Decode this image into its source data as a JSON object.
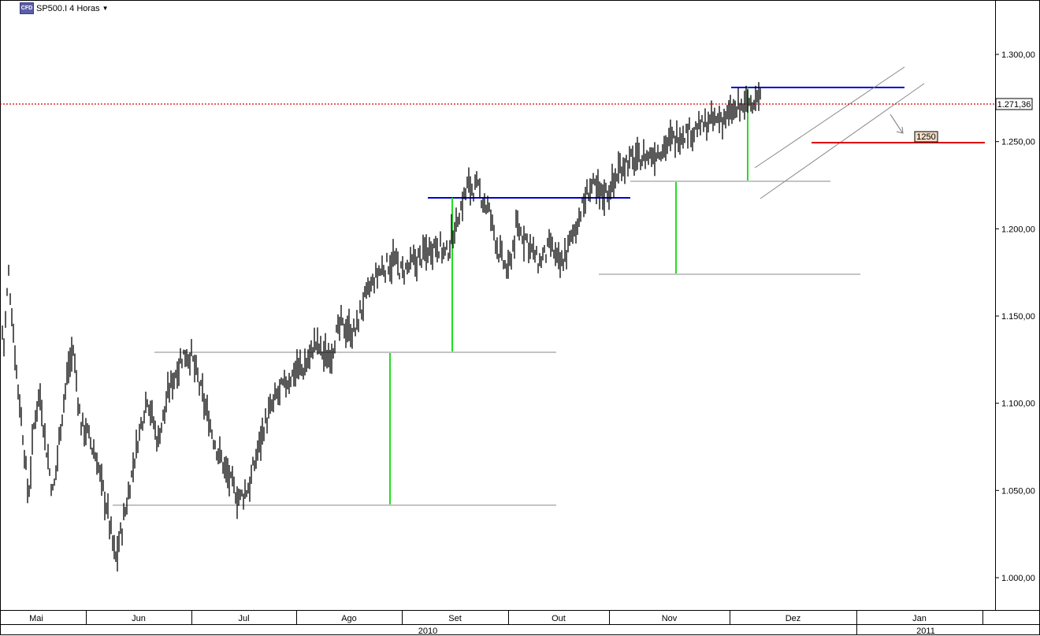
{
  "header": {
    "icon_label": "CFD",
    "symbol": "SP500.I",
    "timeframe": "4 Horas",
    "dropdown_icon": "caret-down-icon"
  },
  "chart_data": {
    "type": "candlestick",
    "title": "SP500.I 4 Horas",
    "yaxis": {
      "ticks": [
        "1.000,00",
        "1.050,00",
        "1.100,00",
        "1.150,00",
        "1.200,00",
        "1.250,00",
        "1.300,00"
      ],
      "tick_values": [
        1000,
        1050,
        1100,
        1150,
        1200,
        1250,
        1300
      ],
      "range": [
        985,
        1331
      ]
    },
    "current_price": {
      "value": 1271.36,
      "label": "1.271,36"
    },
    "target_label": {
      "value": 1250,
      "label": "1250"
    },
    "xaxis": {
      "months": [
        "Mai",
        "Jun",
        "Jul",
        "Ago",
        "Set",
        "Out",
        "Nov",
        "Dez",
        "Jan"
      ],
      "years": [
        "2010",
        "2011"
      ]
    },
    "price_path": [
      [
        0,
        1165
      ],
      [
        0.04,
        1130
      ],
      [
        0.1,
        1175
      ],
      [
        0.18,
        1125
      ],
      [
        0.28,
        1075
      ],
      [
        0.33,
        1045
      ],
      [
        0.4,
        1090
      ],
      [
        0.46,
        1107
      ],
      [
        0.55,
        1070
      ],
      [
        0.62,
        1047
      ],
      [
        0.7,
        1085
      ],
      [
        0.78,
        1115
      ],
      [
        0.85,
        1132
      ],
      [
        0.94,
        1088
      ],
      [
        1.0,
        1085
      ],
      [
        1.1,
        1068
      ],
      [
        1.2,
        1040
      ],
      [
        1.28,
        1010
      ],
      [
        1.38,
        1040
      ],
      [
        1.48,
        1075
      ],
      [
        1.58,
        1105
      ],
      [
        1.68,
        1078
      ],
      [
        1.8,
        1110
      ],
      [
        1.92,
        1128
      ],
      [
        2.0,
        1127
      ],
      [
        2.1,
        1105
      ],
      [
        2.22,
        1078
      ],
      [
        2.35,
        1058
      ],
      [
        2.45,
        1045
      ],
      [
        2.55,
        1052
      ],
      [
        2.68,
        1085
      ],
      [
        2.82,
        1105
      ],
      [
        2.95,
        1115
      ],
      [
        3.0,
        1120
      ],
      [
        3.08,
        1120
      ],
      [
        3.18,
        1135
      ],
      [
        3.3,
        1125
      ],
      [
        3.42,
        1145
      ],
      [
        3.55,
        1140
      ],
      [
        3.65,
        1160
      ],
      [
        3.78,
        1175
      ],
      [
        3.92,
        1182
      ],
      [
        4.0,
        1175
      ],
      [
        4.1,
        1180
      ],
      [
        4.2,
        1185
      ],
      [
        4.32,
        1192
      ],
      [
        4.42,
        1185
      ],
      [
        4.52,
        1205
      ],
      [
        4.62,
        1225
      ],
      [
        4.72,
        1222
      ],
      [
        4.82,
        1210
      ],
      [
        4.92,
        1185
      ],
      [
        5.0,
        1175
      ],
      [
        5.08,
        1200
      ],
      [
        5.18,
        1195
      ],
      [
        5.3,
        1180
      ],
      [
        5.42,
        1190
      ],
      [
        5.52,
        1178
      ],
      [
        5.6,
        1190
      ],
      [
        5.72,
        1210
      ],
      [
        5.82,
        1225
      ],
      [
        5.92,
        1220
      ],
      [
        6.0,
        1222
      ],
      [
        6.12,
        1238
      ],
      [
        6.25,
        1240
      ],
      [
        6.38,
        1243
      ],
      [
        6.5,
        1250
      ],
      [
        6.62,
        1255
      ],
      [
        6.75,
        1258
      ],
      [
        6.88,
        1262
      ],
      [
        7.0,
        1265
      ],
      [
        7.1,
        1270
      ],
      [
        7.2,
        1275
      ],
      [
        7.25,
        1272
      ]
    ],
    "annotations": {
      "resistance_lines": [
        1229,
        1217,
        1280
      ],
      "support_lines": [
        1042,
        1173
      ],
      "range_1": [
        1042,
        1129
      ],
      "target_line": 1250
    }
  }
}
